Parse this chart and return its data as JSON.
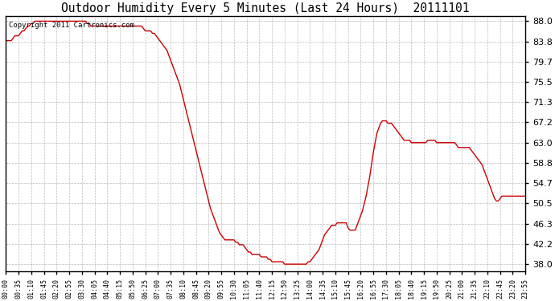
{
  "title": "Outdoor Humidity Every 5 Minutes (Last 24 Hours)  20111101",
  "copyright_text": "Copyright 2011 Cartronics.com",
  "line_color": "#cc0000",
  "background_color": "#ffffff",
  "grid_color": "#aaaaaa",
  "yticks": [
    38.0,
    42.2,
    46.3,
    50.5,
    54.7,
    58.8,
    63.0,
    67.2,
    71.3,
    75.5,
    79.7,
    83.8,
    88.0
  ],
  "ymin": 36.5,
  "ymax": 89.0,
  "xtick_step": 7,
  "humidity_values": [
    84.0,
    84.0,
    84.0,
    84.0,
    84.5,
    85.0,
    85.0,
    85.0,
    85.5,
    86.0,
    86.0,
    86.5,
    87.0,
    87.0,
    87.5,
    87.5,
    88.0,
    88.0,
    88.0,
    88.0,
    88.0,
    88.0,
    88.0,
    88.0,
    88.0,
    88.0,
    88.0,
    88.0,
    88.0,
    88.0,
    88.0,
    88.0,
    88.0,
    88.0,
    88.0,
    88.0,
    88.0,
    88.0,
    88.0,
    88.0,
    88.0,
    88.0,
    88.0,
    88.0,
    88.0,
    87.5,
    87.5,
    87.0,
    87.0,
    87.0,
    87.0,
    87.0,
    87.0,
    87.0,
    87.0,
    87.0,
    87.0,
    87.0,
    87.0,
    87.0,
    87.0,
    87.0,
    87.0,
    87.0,
    87.0,
    87.0,
    87.0,
    87.0,
    87.0,
    87.0,
    87.0,
    87.0,
    87.0,
    87.0,
    87.0,
    87.0,
    86.5,
    86.0,
    86.0,
    86.0,
    86.0,
    85.5,
    85.5,
    85.0,
    84.5,
    84.0,
    83.5,
    83.0,
    82.5,
    82.0,
    81.0,
    80.0,
    79.0,
    78.0,
    77.0,
    76.0,
    75.0,
    73.5,
    72.0,
    70.5,
    69.0,
    67.5,
    66.0,
    64.5,
    63.0,
    61.5,
    60.0,
    58.5,
    57.0,
    55.5,
    54.0,
    52.5,
    51.0,
    49.5,
    48.5,
    47.5,
    46.5,
    45.5,
    44.5,
    44.0,
    43.5,
    43.0,
    43.0,
    43.0,
    43.0,
    43.0,
    43.0,
    42.5,
    42.5,
    42.0,
    42.0,
    42.0,
    41.5,
    41.0,
    40.5,
    40.5,
    40.0,
    40.0,
    40.0,
    40.0,
    40.0,
    39.5,
    39.5,
    39.5,
    39.5,
    39.0,
    39.0,
    38.5,
    38.5,
    38.5,
    38.5,
    38.5,
    38.5,
    38.5,
    38.0,
    38.0,
    38.0,
    38.0,
    38.0,
    38.0,
    38.0,
    38.0,
    38.0,
    38.0,
    38.0,
    38.0,
    38.0,
    38.5,
    38.5,
    39.0,
    39.5,
    40.0,
    40.5,
    41.0,
    42.0,
    43.0,
    44.0,
    44.5,
    45.0,
    45.5,
    46.0,
    46.0,
    46.0,
    46.5,
    46.5,
    46.5,
    46.5,
    46.5,
    46.5,
    45.5,
    45.0,
    45.0,
    45.0,
    45.0,
    46.0,
    47.0,
    48.0,
    49.0,
    50.5,
    52.0,
    54.0,
    56.0,
    58.5,
    61.0,
    63.0,
    65.0,
    66.0,
    67.0,
    67.5,
    67.5,
    67.5,
    67.0,
    67.0,
    67.0,
    66.5,
    66.0,
    65.5,
    65.0,
    64.5,
    64.0,
    63.5,
    63.5,
    63.5,
    63.5,
    63.0,
    63.0,
    63.0,
    63.0,
    63.0,
    63.0,
    63.0,
    63.0,
    63.0,
    63.5,
    63.5,
    63.5,
    63.5,
    63.5,
    63.0,
    63.0,
    63.0,
    63.0,
    63.0,
    63.0,
    63.0,
    63.0,
    63.0,
    63.0,
    63.0,
    62.5,
    62.0,
    62.0,
    62.0,
    62.0,
    62.0,
    62.0,
    62.0,
    61.5,
    61.0,
    60.5,
    60.0,
    59.5,
    59.0,
    58.5,
    57.5,
    56.5,
    55.5,
    54.5,
    53.5,
    52.5,
    51.5,
    51.0,
    51.0,
    51.5,
    52.0,
    52.0,
    52.0,
    52.0,
    52.0,
    52.0,
    52.0,
    52.0,
    52.0,
    52.0,
    52.0,
    52.0,
    52.0,
    52.0,
    52.0
  ]
}
